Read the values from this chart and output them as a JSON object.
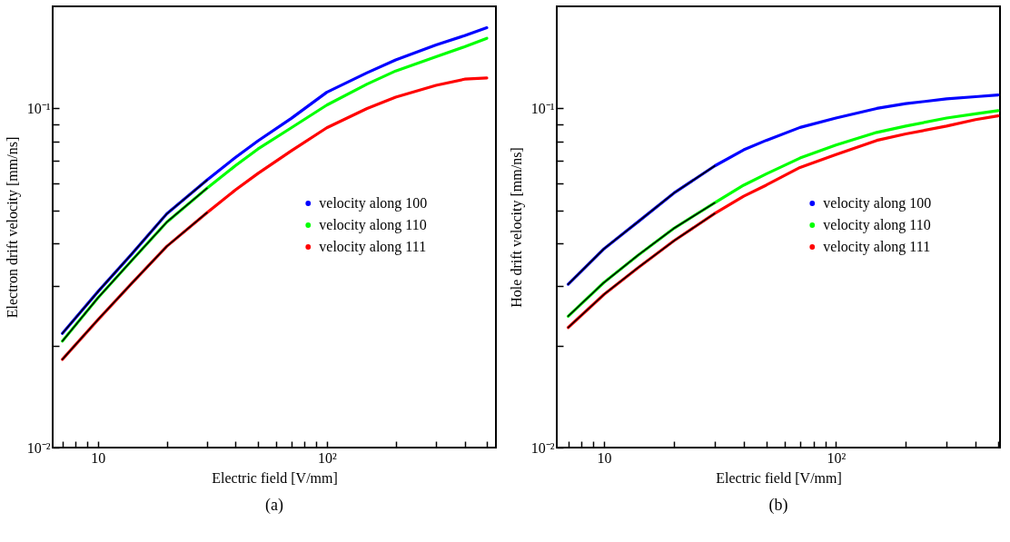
{
  "chart_data": [
    {
      "type": "line",
      "xlabel": "Electric field [V/mm]",
      "ylabel": "Electron drift velocity [mm/ns]",
      "annotations": [
        "(a)"
      ],
      "log": "xy",
      "legend": "right",
      "x": [
        7,
        10,
        14,
        20,
        30,
        40,
        50,
        70,
        100,
        150,
        200,
        300,
        400,
        500
      ],
      "xlim": [
        6.35,
        548
      ],
      "ylim": [
        0.01,
        0.2
      ],
      "xticks": [
        {
          "value": 7,
          "label": null
        },
        {
          "value": 8,
          "label": null
        },
        {
          "value": 9,
          "label": null
        },
        10,
        {
          "value": 20,
          "label": null
        },
        {
          "value": 30,
          "label": null
        },
        {
          "value": 40,
          "label": null
        },
        {
          "value": 50,
          "label": null
        },
        {
          "value": 60,
          "label": null
        },
        {
          "value": 70,
          "label": null
        },
        {
          "value": 80,
          "label": null
        },
        {
          "value": 90,
          "label": null
        },
        {
          "value": 100,
          "label": "10²"
        },
        {
          "value": 200,
          "label": null
        },
        {
          "value": 300,
          "label": null
        },
        {
          "value": 400,
          "label": null
        },
        {
          "value": 500,
          "label": null
        }
      ],
      "yticks": [
        {
          "value": 0.01,
          "label": "10⁻²"
        },
        {
          "value": 0.02,
          "label": null
        },
        {
          "value": 0.03,
          "label": null
        },
        {
          "value": 0.04,
          "label": null
        },
        {
          "value": 0.05,
          "label": null
        },
        {
          "value": 0.06,
          "label": null
        },
        {
          "value": 0.07,
          "label": null
        },
        {
          "value": 0.08,
          "label": null
        },
        {
          "value": 0.09,
          "label": null
        },
        {
          "value": 0.1,
          "label": "10⁻¹"
        }
      ],
      "series": [
        {
          "name": "velocity along 100",
          "color": "#0000ff",
          "values": [
            0.0217,
            0.0288,
            0.0371,
            0.0489,
            0.0615,
            0.0718,
            0.0802,
            0.0935,
            0.1116,
            0.1274,
            0.139,
            0.154,
            0.164,
            0.173
          ]
        },
        {
          "name": "velocity along 110",
          "color": "#00ff00",
          "values": [
            0.0206,
            0.0276,
            0.0355,
            0.0462,
            0.0582,
            0.0679,
            0.0759,
            0.0877,
            0.1023,
            0.118,
            0.129,
            0.142,
            0.152,
            0.161
          ]
        },
        {
          "name": "velocity along 111",
          "color": "#ff0000",
          "values": [
            0.0182,
            0.0238,
            0.0304,
            0.0392,
            0.0493,
            0.0576,
            0.0643,
            0.075,
            0.0877,
            0.1,
            0.108,
            0.117,
            0.122,
            0.123
          ]
        },
        {
          "type": "line",
          "color": "#000000",
          "x": [
            7,
            10,
            14,
            20,
            30
          ],
          "values": [
            0.0217,
            0.0288,
            0.0371,
            0.0489,
            0.0615
          ]
        },
        {
          "type": "line",
          "color": "#000000",
          "x": [
            7,
            10,
            14,
            20,
            30
          ],
          "values": [
            0.0206,
            0.0276,
            0.0355,
            0.0462,
            0.0582
          ]
        },
        {
          "type": "line",
          "color": "#000000",
          "x": [
            7,
            10,
            14,
            20,
            30
          ],
          "values": [
            0.0182,
            0.0238,
            0.0304,
            0.0392,
            0.0493
          ]
        }
      ]
    },
    {
      "type": "line",
      "xlabel": "Electric field [V/mm]",
      "ylabel": "Hole drift velocity [mm/ns]",
      "annotations": [
        "(b)"
      ],
      "log": "xy",
      "legend": "right",
      "x": [
        7,
        10,
        14,
        20,
        30,
        40,
        50,
        70,
        100,
        150,
        200,
        300,
        400,
        500
      ],
      "xlim": [
        6.25,
        510
      ],
      "ylim": [
        0.01,
        0.2
      ],
      "xticks": [
        {
          "value": 7,
          "label": null
        },
        {
          "value": 8,
          "label": null
        },
        {
          "value": 9,
          "label": null
        },
        10,
        {
          "value": 20,
          "label": null
        },
        {
          "value": 30,
          "label": null
        },
        {
          "value": 40,
          "label": null
        },
        {
          "value": 50,
          "label": null
        },
        {
          "value": 60,
          "label": null
        },
        {
          "value": 70,
          "label": null
        },
        {
          "value": 80,
          "label": null
        },
        {
          "value": 90,
          "label": null
        },
        {
          "value": 100,
          "label": "10²"
        },
        {
          "value": 200,
          "label": null
        },
        {
          "value": 300,
          "label": null
        },
        {
          "value": 400,
          "label": null
        },
        {
          "value": 500,
          "label": null
        }
      ],
      "yticks": [
        {
          "value": 0.01,
          "label": "10⁻²"
        },
        {
          "value": 0.02,
          "label": null
        },
        {
          "value": 0.03,
          "label": null
        },
        {
          "value": 0.04,
          "label": null
        },
        {
          "value": 0.05,
          "label": null
        },
        {
          "value": 0.06,
          "label": null
        },
        {
          "value": 0.07,
          "label": null
        },
        {
          "value": 0.08,
          "label": null
        },
        {
          "value": 0.09,
          "label": null
        },
        {
          "value": 0.1,
          "label": "10⁻¹"
        }
      ],
      "series": [
        {
          "name": "velocity along 100",
          "color": "#0000ff",
          "values": [
            0.0303,
            0.0386,
            0.0463,
            0.0563,
            0.0677,
            0.0755,
            0.0805,
            0.0879,
            0.0937,
            0.1,
            0.1033,
            0.1067,
            0.1083,
            0.1096
          ]
        },
        {
          "name": "velocity along 110",
          "color": "#00ff00",
          "values": [
            0.0244,
            0.0307,
            0.0369,
            0.0443,
            0.0527,
            0.0594,
            0.0641,
            0.0714,
            0.078,
            0.085,
            0.0887,
            0.0937,
            0.0964,
            0.0985
          ]
        },
        {
          "name": "velocity along 111",
          "color": "#ff0000",
          "values": [
            0.0226,
            0.0283,
            0.0339,
            0.0407,
            0.049,
            0.0551,
            0.0594,
            0.067,
            0.0731,
            0.0805,
            0.0841,
            0.0887,
            0.0927,
            0.0951
          ]
        },
        {
          "type": "line",
          "color": "#000000",
          "x": [
            7,
            10,
            14,
            20,
            30
          ],
          "values": [
            0.0303,
            0.0386,
            0.0463,
            0.0563,
            0.0677
          ]
        },
        {
          "type": "line",
          "color": "#000000",
          "x": [
            7,
            10,
            14,
            20,
            30
          ],
          "values": [
            0.0244,
            0.0307,
            0.0369,
            0.0443,
            0.0527
          ]
        },
        {
          "type": "line",
          "color": "#000000",
          "x": [
            7,
            10,
            14,
            20,
            30
          ],
          "values": [
            0.0226,
            0.0283,
            0.0339,
            0.0407,
            0.049
          ]
        }
      ]
    }
  ]
}
